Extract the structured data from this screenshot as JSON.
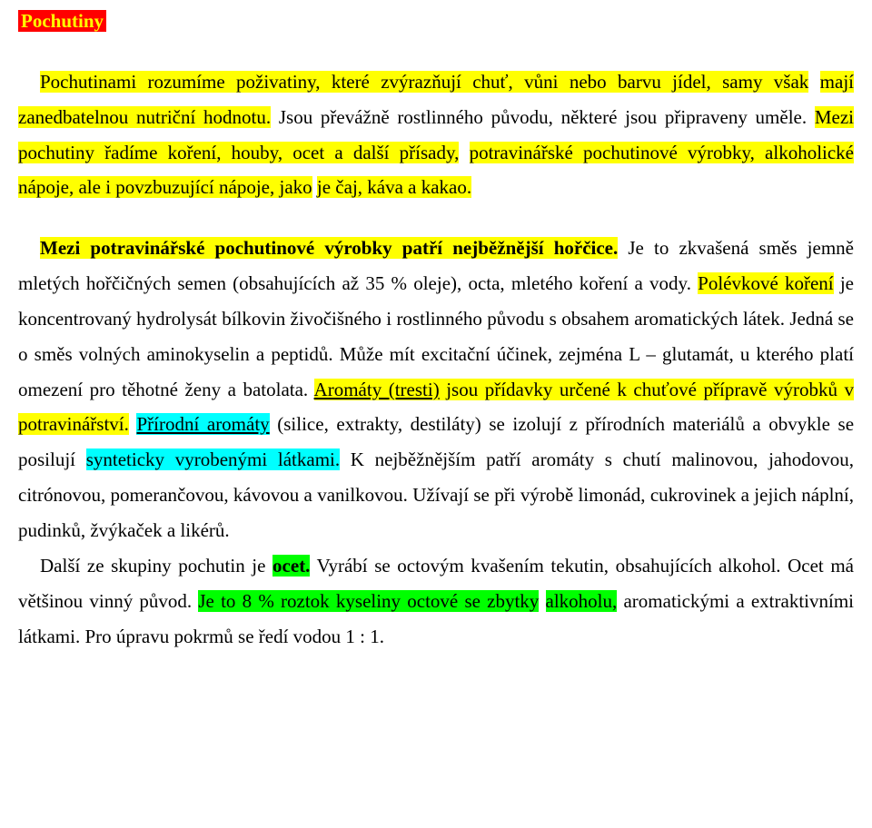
{
  "colors": {
    "title_bg": "#ff0000",
    "title_fg": "#ffff00",
    "hl_yellow": "#ffff00",
    "hl_green": "#00ff00",
    "hl_cyan": "#00ffff",
    "text": "#000000",
    "background": "#ffffff"
  },
  "typography": {
    "font_family": "Times New Roman",
    "font_size_pt_estimate": 16,
    "line_height": 1.85
  },
  "title": "Pochutiny",
  "para1": {
    "s1a": "Pochutinami rozumíme poživatiny, které zvýrazňují chuť, vůni nebo barvu jídel, samy však",
    "s1b": "mají zanedbatelnou nutriční hodnotu.",
    "s2": " Jsou převážně rostlinného původu, některé jsou připraveny uměle. ",
    "s3a": "Mezi pochutiny řadíme koření, houby, ocet a další přísady,",
    "s3b": "potravinářské pochutinové výrobky, alkoholické nápoje, ale i povzbuzující nápoje, jako",
    "s3c": "je čaj, káva a kakao."
  },
  "para2": {
    "s1": "Mezi potravinářské pochutinové výrobky patří nejběžnější hořčice.",
    "s2": " Je to zkvašená směs jemně mletých hořčičných semen (obsahujících až 35 % oleje), octa, mletého koření a vody. ",
    "s3a": "Polévkové koření",
    "s3b": " je koncentrovaný hydrolysát bílkovin živočišného i rostlinného původu s obsahem aromatických látek. Jedná se o směs volných aminokyselin a peptidů. Může mít excitační účinek, zejména L – glutamát, u kterého platí omezení pro těhotné ženy a batolata. ",
    "s4a": "Aromáty (tresti)",
    "s4b": " jsou přídavky určené k chuťové přípravě výrobků v potravinářství.",
    "s5a": "Přírodní aromáty",
    "s5b": " (silice, extrakty, destiláty) se izolují z přírodních materiálů a obvykle se posilují ",
    "s5c": "synteticky vyrobenými látkami.",
    "s5d": " K nejběžnějším patří aromáty s chutí malinovou, jahodovou, citrónovou, pomerančovou, kávovou a vanilkovou. Užívají se při výrobě limonád, cukrovinek a jejich náplní, pudinků, žvýkaček a likérů."
  },
  "para3": {
    "s1": "Další ze skupiny pochutin je ",
    "s2": "ocet.",
    "s3": " Vyrábí se octovým kvašením tekutin, obsahujících alkohol. Ocet má většinou vinný původ. ",
    "s4a": "Je to 8 % roztok kyseliny octové se zbytky",
    "s4b": "alkoholu,",
    "s5": " aromatickými a extraktivními látkami. Pro úpravu pokrmů se ředí vodou 1 : 1."
  }
}
